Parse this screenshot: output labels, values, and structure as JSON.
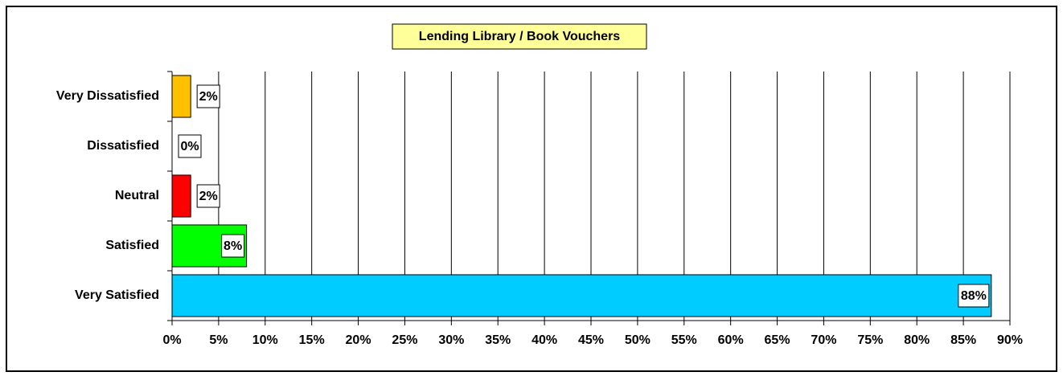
{
  "chart_data": {
    "type": "hbar",
    "title": "Lending Library / Book Vouchers",
    "categories": [
      "Very Dissatisfied",
      "Dissatisfied",
      "Neutral",
      "Satisfied",
      "Very Satisfied"
    ],
    "values": [
      2,
      0,
      2,
      8,
      88
    ],
    "value_labels": [
      "2%",
      "0%",
      "2%",
      "8%",
      "88%"
    ],
    "colors": [
      "#ffc000",
      null,
      "#ff0000",
      "#00ff00",
      "#00ccff"
    ],
    "xlim": [
      0,
      90
    ],
    "xticks": [
      {
        "value": 0,
        "label": "0%"
      },
      {
        "value": 5,
        "label": "5%"
      },
      {
        "value": 10,
        "label": "10%"
      },
      {
        "value": 15,
        "label": "15%"
      },
      {
        "value": 20,
        "label": "20%"
      },
      {
        "value": 25,
        "label": "25%"
      },
      {
        "value": 30,
        "label": "30%"
      },
      {
        "value": 35,
        "label": "35%"
      },
      {
        "value": 40,
        "label": "40%"
      },
      {
        "value": 45,
        "label": "45%"
      },
      {
        "value": 50,
        "label": "50%"
      },
      {
        "value": 55,
        "label": "55%"
      },
      {
        "value": 60,
        "label": "60%"
      },
      {
        "value": 65,
        "label": "65%"
      },
      {
        "value": 70,
        "label": "70%"
      },
      {
        "value": 75,
        "label": "75%"
      },
      {
        "value": 80,
        "label": "80%"
      },
      {
        "value": 85,
        "label": "85%"
      },
      {
        "value": 90,
        "label": "90%"
      }
    ],
    "grid": true
  }
}
